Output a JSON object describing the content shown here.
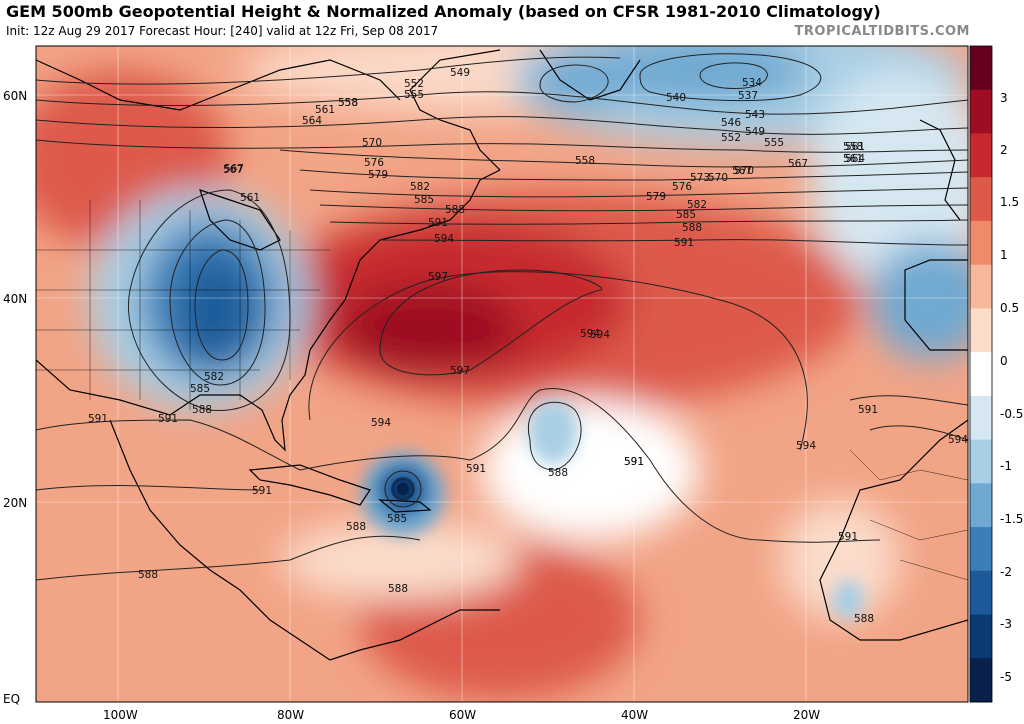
{
  "header": {
    "title": "GEM 500mb Geopotential Height & Normalized Anomaly (based on CFSR 1981-2010 Climatology)",
    "subtitle": "Init: 12z Aug 29 2017   Forecast Hour: [240]   valid at 12z Fri, Sep 08 2017",
    "site": "TROPICALTIDBITS.COM"
  },
  "axes": {
    "lat_labels": [
      "60N",
      "40N",
      "20N",
      "EQ"
    ],
    "lon_labels": [
      "100W",
      "80W",
      "60W",
      "40W",
      "20W"
    ]
  },
  "colorbar": {
    "labels": [
      "3",
      "2",
      "1.5",
      "1",
      "0.5",
      "0",
      "-0.5",
      "-1",
      "-1.5",
      "-2",
      "-3",
      "-5"
    ],
    "colors": [
      "#67001f",
      "#9e0d23",
      "#c62a2f",
      "#dd5a4b",
      "#ef8a6a",
      "#f7b799",
      "#fbdccb",
      "#ffffff",
      "#d6e7f1",
      "#a9cfe5",
      "#6fa9d1",
      "#3b7fb9",
      "#1c5a99",
      "#0b3a73",
      "#08204a"
    ]
  },
  "contour_labels": [
    {
      "text": "549"
    },
    {
      "text": "552"
    },
    {
      "text": "555"
    },
    {
      "text": "558"
    },
    {
      "text": "561"
    },
    {
      "text": "564"
    },
    {
      "text": "567"
    },
    {
      "text": "570"
    },
    {
      "text": "576"
    },
    {
      "text": "579"
    },
    {
      "text": "582"
    },
    {
      "text": "585"
    },
    {
      "text": "588"
    },
    {
      "text": "591"
    },
    {
      "text": "594"
    },
    {
      "text": "597"
    },
    {
      "text": "597"
    },
    {
      "text": "594"
    },
    {
      "text": "594"
    },
    {
      "text": "591"
    },
    {
      "text": "588"
    },
    {
      "text": "591"
    },
    {
      "text": "591"
    },
    {
      "text": "585"
    },
    {
      "text": "588"
    },
    {
      "text": "588"
    },
    {
      "text": "591"
    },
    {
      "text": "588"
    },
    {
      "text": "534"
    },
    {
      "text": "537"
    },
    {
      "text": "540"
    },
    {
      "text": "543"
    },
    {
      "text": "546"
    },
    {
      "text": "549"
    },
    {
      "text": "552"
    },
    {
      "text": "555"
    },
    {
      "text": "558"
    },
    {
      "text": "561"
    },
    {
      "text": "564"
    },
    {
      "text": "567"
    },
    {
      "text": "570"
    },
    {
      "text": "573"
    },
    {
      "text": "576"
    },
    {
      "text": "579"
    },
    {
      "text": "582"
    },
    {
      "text": "585"
    },
    {
      "text": "588"
    },
    {
      "text": "591"
    },
    {
      "text": "594"
    },
    {
      "text": "591"
    },
    {
      "text": "591"
    },
    {
      "text": "594"
    },
    {
      "text": "588"
    },
    {
      "text": "567"
    },
    {
      "text": "561"
    },
    {
      "text": "558"
    },
    {
      "text": "582"
    },
    {
      "text": "585"
    },
    {
      "text": "588"
    },
    {
      "text": "591"
    },
    {
      "text": "594"
    },
    {
      "text": "591"
    },
    {
      "text": "558"
    },
    {
      "text": "561"
    },
    {
      "text": "567"
    },
    {
      "text": "570"
    }
  ]
}
